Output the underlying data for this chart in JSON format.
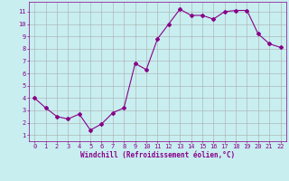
{
  "x": [
    0,
    1,
    2,
    3,
    4,
    5,
    6,
    7,
    8,
    9,
    10,
    11,
    12,
    13,
    14,
    15,
    16,
    17,
    18,
    19,
    20,
    21,
    22
  ],
  "y": [
    4.0,
    3.2,
    2.5,
    2.3,
    2.7,
    1.4,
    1.9,
    2.8,
    3.2,
    6.8,
    6.3,
    8.8,
    10.0,
    11.2,
    10.7,
    10.7,
    10.4,
    11.0,
    11.1,
    11.1,
    9.2,
    8.4,
    8.1
  ],
  "line_color": "#880088",
  "marker": "D",
  "marker_size": 2,
  "bg_color": "#c8eef0",
  "grid_color": "#aaaaaa",
  "xlabel": "Windchill (Refroidissement éolien,°C)",
  "xlabel_color": "#880088",
  "tick_color": "#880088",
  "xlim": [
    -0.5,
    22.5
  ],
  "ylim": [
    0.5,
    11.8
  ],
  "yticks": [
    1,
    2,
    3,
    4,
    5,
    6,
    7,
    8,
    9,
    10,
    11
  ],
  "xticks": [
    0,
    1,
    2,
    3,
    4,
    5,
    6,
    7,
    8,
    9,
    10,
    11,
    12,
    13,
    14,
    15,
    16,
    17,
    18,
    19,
    20,
    21,
    22
  ],
  "label_fontsize": 5.5,
  "tick_fontsize": 5.0
}
